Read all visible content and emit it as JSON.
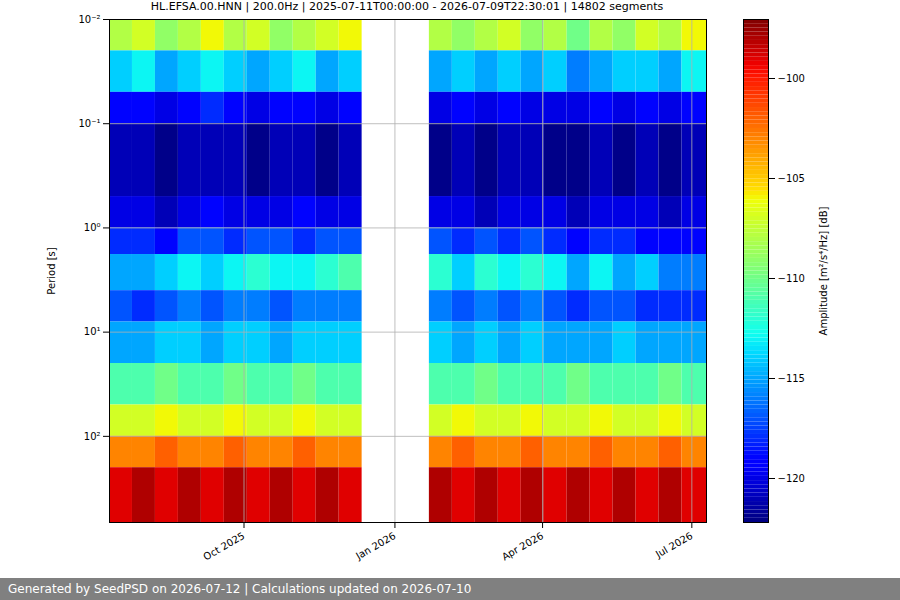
{
  "chart_data": {
    "type": "heatmap",
    "title": "HL.EFSA.00.HNN | 200.0Hz | 2025-07-11T00:00:00 - 2026-07-09T22:30:01 | 14802 segments",
    "y_label": "Period [s]",
    "footer": "Generated by SeedPSD on 2026-07-12 | Calculations updated on 2026-07-10",
    "log": "y",
    "grid": true,
    "xlim": [
      "2025-07-11T00:00:00",
      "2026-07-09T22:30:01"
    ],
    "xticks": [
      {
        "value": "2025-10-01T00:00:00",
        "label": "Oct 2025"
      },
      {
        "value": "2026-01-01T00:00:00",
        "label": "Jan 2026"
      },
      {
        "value": "2026-04-01T00:00:00",
        "label": "Apr 2026"
      },
      {
        "value": "2026-07-01T00:00:00",
        "label": "Jul 2026"
      }
    ],
    "ylim": [
      0.01,
      671
    ],
    "yticks": [
      {
        "value": 0.01,
        "label": "10⁻²"
      },
      {
        "value": 0.1,
        "label": "10⁻¹"
      },
      {
        "value": 1,
        "label": "10⁰"
      },
      {
        "value": 10,
        "label": "10¹"
      },
      {
        "value": 100,
        "label": "10²"
      }
    ],
    "x_edges": [
      "2025-07-11T00:00:00",
      "2025-07-25T00:00:00",
      "2025-08-08T00:00:00",
      "2025-08-22T00:00:00",
      "2025-09-05T00:00:00",
      "2025-09-19T00:00:00",
      "2025-10-03T00:00:00",
      "2025-10-17T00:00:00",
      "2025-10-31T00:00:00",
      "2025-11-14T00:00:00",
      "2025-11-28T00:00:00",
      "2025-12-12T00:00:00",
      "2026-01-22T00:00:00",
      "2026-02-05T00:00:00",
      "2026-02-19T00:00:00",
      "2026-03-05T00:00:00",
      "2026-03-19T00:00:00",
      "2026-04-02T00:00:00",
      "2026-04-16T00:00:00",
      "2026-04-30T00:00:00",
      "2026-05-14T00:00:00",
      "2026-05-28T00:00:00",
      "2026-06-11T00:00:00",
      "2026-06-25T00:00:00",
      "2026-07-09T22:30:01"
    ],
    "y_edges": [
      0.01,
      0.02,
      0.05,
      0.1,
      0.5,
      1,
      1.8,
      4,
      8,
      20,
      50,
      100,
      200,
      671
    ],
    "cells": [
      [
        -108,
        -107,
        -109,
        -108,
        -106,
        -108,
        -107,
        -109,
        -108,
        -107,
        -106,
        null,
        -108,
        -109,
        -108,
        -107,
        -109,
        -108,
        -110,
        -108,
        -109,
        -107,
        -108,
        -106
      ],
      [
        -114,
        -113,
        -115,
        -114,
        -113,
        -114,
        -115,
        -114,
        -113,
        -115,
        -114,
        null,
        -115,
        -114,
        -115,
        -114,
        -115,
        -114,
        -116,
        -115,
        -114,
        -114,
        -115,
        -113
      ],
      [
        -119,
        -119,
        -120,
        -119,
        -118,
        -119,
        -120,
        -119,
        -119,
        -120,
        -119,
        null,
        -120,
        -119,
        -120,
        -119,
        -120,
        -120,
        -120,
        -119,
        -120,
        -119,
        -120,
        -119
      ],
      [
        -121,
        -121,
        -122,
        -121,
        -121,
        -121,
        -122,
        -121,
        -121,
        -122,
        -121,
        null,
        -122,
        -121,
        -122,
        -121,
        -121,
        -122,
        -122,
        -121,
        -122,
        -121,
        -122,
        -121
      ],
      [
        -120,
        -120,
        -121,
        -120,
        -119,
        -120,
        -120,
        -120,
        -119,
        -120,
        -120,
        null,
        -120,
        -120,
        -121,
        -120,
        -120,
        -120,
        -121,
        -120,
        -120,
        -120,
        -121,
        -120
      ],
      [
        -118,
        -118,
        -119,
        -117,
        -117,
        -118,
        -117,
        -117,
        -118,
        -117,
        -117,
        null,
        -117,
        -118,
        -117,
        -118,
        -117,
        -118,
        -119,
        -118,
        -118,
        -119,
        -119,
        -119
      ],
      [
        -115,
        -115,
        -114,
        -113,
        -114,
        -113,
        -112,
        -113,
        -113,
        -112,
        -111,
        null,
        -112,
        -114,
        -112,
        -113,
        -112,
        -113,
        -115,
        -113,
        -115,
        -114,
        -116,
        -116
      ],
      [
        -117,
        -118,
        -117,
        -116,
        -117,
        -116,
        -116,
        -117,
        -116,
        -116,
        -116,
        null,
        -116,
        -117,
        -116,
        -117,
        -116,
        -117,
        -118,
        -117,
        -117,
        -118,
        -118,
        -118
      ],
      [
        -115,
        -115,
        -114,
        -114,
        -115,
        -114,
        -114,
        -115,
        -114,
        -114,
        -114,
        null,
        -114,
        -115,
        -114,
        -115,
        -114,
        -115,
        -115,
        -115,
        -114,
        -115,
        -115,
        -115
      ],
      [
        -111,
        -111,
        -110,
        -111,
        -111,
        -110,
        -111,
        -111,
        -110,
        -111,
        -111,
        null,
        -111,
        -111,
        -110,
        -111,
        -111,
        -111,
        -110,
        -111,
        -111,
        -111,
        -110,
        -111
      ],
      [
        -107,
        -107,
        -106,
        -107,
        -107,
        -106,
        -107,
        -107,
        -106,
        -107,
        -107,
        null,
        -107,
        -106,
        -107,
        -107,
        -106,
        -107,
        -107,
        -106,
        -107,
        -107,
        -106,
        -107
      ],
      [
        -103,
        -103,
        -102,
        -103,
        -103,
        -102,
        -103,
        -103,
        -102,
        -103,
        -103,
        null,
        -103,
        -102,
        -103,
        -103,
        -102,
        -103,
        -103,
        -102,
        -103,
        -103,
        -102,
        -103
      ],
      [
        -99,
        -98,
        -99,
        -98,
        -99,
        -98,
        -99,
        -98,
        -99,
        -98,
        -99,
        null,
        -98,
        -99,
        -98,
        -99,
        -98,
        -99,
        -98,
        -99,
        -98,
        -99,
        -98,
        -99
      ]
    ],
    "colorbar": {
      "label": "Amplitude [m²/s⁴/Hz] [dB]",
      "lim": [
        -122.2,
        -97.05
      ],
      "ticks": [
        -120,
        -115,
        -110,
        -105,
        -100
      ]
    }
  }
}
